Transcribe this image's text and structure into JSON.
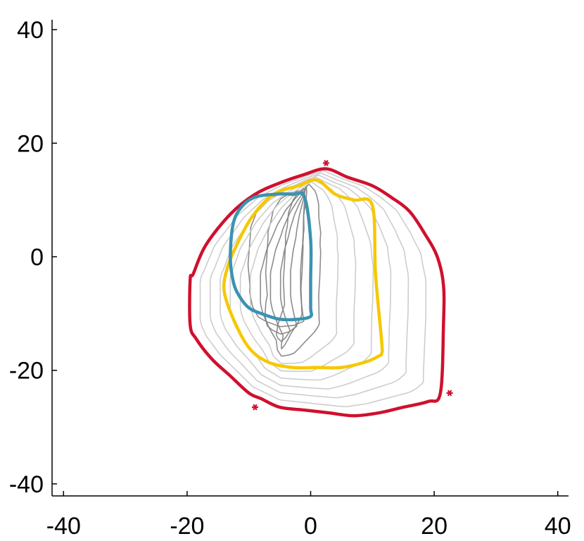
{
  "chart_data": {
    "type": "line",
    "title": "",
    "xlabel": "",
    "ylabel": "",
    "xlim": [
      -42,
      42
    ],
    "ylim": [
      -41,
      42
    ],
    "x_ticks": [
      -40,
      -20,
      0,
      20,
      40
    ],
    "y_ticks": [
      -40,
      -20,
      0,
      20,
      40
    ],
    "x_tick_labels": [
      "-40",
      "-20",
      "0",
      "20",
      "40"
    ],
    "y_tick_labels": [
      "-40",
      "-20",
      "0",
      "20",
      "40"
    ],
    "grid": false,
    "legend": "none",
    "colors": {
      "outer": "#d0102e",
      "inner": "#3a93b2",
      "middle": "#f6c800",
      "contour_dark": "#808080",
      "contour_light": "#c8c8c8",
      "axis": "#000000"
    },
    "series": [
      {
        "role": "inner",
        "closed": true,
        "x": [
          0,
          0,
          0,
          -1,
          -3,
          -6,
          -9,
          -11,
          -12.5,
          -13,
          -12.5,
          -11.5,
          -10,
          -8,
          -5,
          -2,
          0,
          0
        ],
        "y": [
          -9,
          -4,
          3,
          10.5,
          11,
          11,
          10.5,
          9,
          6,
          0,
          -4.5,
          -7,
          -9,
          -10,
          -11,
          -11,
          -10.5,
          -9
        ]
      },
      {
        "role": "middle",
        "closed": true,
        "x": [
          1,
          4,
          7,
          10,
          10.5,
          11.5,
          11.5,
          11,
          9,
          5,
          1,
          -3,
          -7,
          -10,
          -12.5,
          -14,
          -13.5,
          -12,
          -9.5,
          -6,
          -2,
          1
        ],
        "y": [
          13.5,
          11,
          10,
          9,
          -3,
          -15,
          -17,
          -17.5,
          -18.5,
          -19.5,
          -19.5,
          -19.5,
          -18.5,
          -16,
          -11,
          -6,
          -2,
          2,
          7,
          11,
          12.5,
          13.5
        ]
      },
      {
        "role": "outer",
        "closed": true,
        "x": [
          2.5,
          6,
          10,
          13,
          16,
          18.5,
          20.5,
          21.5,
          21.5,
          21,
          19,
          15,
          11,
          7,
          3,
          -1,
          -5,
          -8,
          -10,
          -13,
          -16,
          -18.5,
          -19.5,
          -19.5,
          -19,
          -17,
          -13,
          -9,
          -5,
          -1,
          2.5
        ],
        "y": [
          15.5,
          14,
          12.5,
          10.5,
          8,
          4,
          0,
          -5,
          -12,
          -24,
          -25.5,
          -26.5,
          -27.5,
          -28,
          -27.5,
          -27,
          -26.5,
          -25,
          -24,
          -21,
          -18,
          -14.5,
          -12,
          -4,
          -3,
          2,
          7.5,
          11,
          13,
          14.5,
          15.5
        ]
      }
    ],
    "markers": [
      {
        "x": 2.5,
        "y": 16.5,
        "shape": "asterisk",
        "color": "#d0102e"
      },
      {
        "x": -9,
        "y": -26.5,
        "shape": "asterisk",
        "color": "#d0102e"
      },
      {
        "x": 22.5,
        "y": -24,
        "shape": "asterisk",
        "color": "#d0102e"
      }
    ],
    "contour_levels": 11
  }
}
